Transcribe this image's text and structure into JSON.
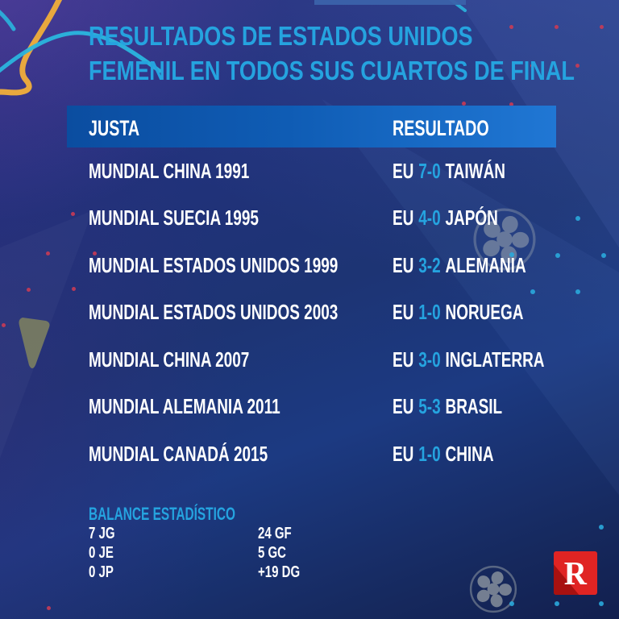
{
  "title": {
    "line1": "RESULTADOS DE ESTADOS UNIDOS",
    "line2": "FEMENIL EN TODOS SUS CUARTOS DE FINAL"
  },
  "table": {
    "header": {
      "justa": "JUSTA",
      "resultado": "RESULTADO"
    },
    "rows": [
      {
        "justa": "MUNDIAL CHINA 1991",
        "team": "EU",
        "score": "7-0",
        "opponent": "TAIWÁN"
      },
      {
        "justa": "MUNDIAL SUECIA 1995",
        "team": "EU",
        "score": "4-0",
        "opponent": "JAPÓN"
      },
      {
        "justa": "MUNDIAL ESTADOS UNIDOS 1999",
        "team": "EU",
        "score": "3-2",
        "opponent": "ALEMANIA"
      },
      {
        "justa": "MUNDIAL ESTADOS UNIDOS 2003",
        "team": "EU",
        "score": "1-0",
        "opponent": "NORUEGA"
      },
      {
        "justa": "MUNDIAL CHINA 2007",
        "team": "EU",
        "score": "3-0",
        "opponent": "INGLATERRA"
      },
      {
        "justa": "MUNDIAL ALEMANIA 2011",
        "team": "EU",
        "score": "5-3",
        "opponent": "BRASIL"
      },
      {
        "justa": "MUNDIAL CANADÁ 2015",
        "team": "EU",
        "score": "1-0",
        "opponent": "CHINA"
      }
    ]
  },
  "balance": {
    "title": "BALANCE ESTADÍSTICO",
    "left": [
      "7 JG",
      "0 JE",
      "0 JP"
    ],
    "right": [
      "24 GF",
      "5 GC",
      "+19 DG"
    ]
  },
  "logo": {
    "letter": "R"
  },
  "colors": {
    "accent_blue": "#25A3DF",
    "header_gradient_left": "#0B4DA0",
    "header_gradient_right": "#2077D4",
    "background_navy": "#1C3470",
    "logo_red": "#E02423",
    "logo_red_dark": "#A81110",
    "dot_red": "#C93B55",
    "dot_cyan": "#2AA8DC",
    "curve_gold": "#E8A83E",
    "curve_teal": "#2AB5DE",
    "ball_gray": "#C2C7BF",
    "pick_olive": "#7D8160"
  },
  "chart_data": {
    "type": "table",
    "title": "RESULTADOS DE ESTADOS UNIDOS FEMENIL EN TODOS SUS CUARTOS DE FINAL",
    "columns": [
      "JUSTA",
      "RESULTADO"
    ],
    "rows": [
      [
        "MUNDIAL CHINA 1991",
        "EU 7-0 TAIWÁN"
      ],
      [
        "MUNDIAL SUECIA 1995",
        "EU 4-0 JAPÓN"
      ],
      [
        "MUNDIAL ESTADOS UNIDOS 1999",
        "EU 3-2 ALEMANIA"
      ],
      [
        "MUNDIAL ESTADOS UNIDOS 2003",
        "EU 1-0 NORUEGA"
      ],
      [
        "MUNDIAL CHINA 2007",
        "EU 3-0 INGLATERRA"
      ],
      [
        "MUNDIAL ALEMANIA 2011",
        "EU 5-3 BRASIL"
      ],
      [
        "MUNDIAL CANADÁ 2015",
        "EU 1-0 CHINA"
      ]
    ],
    "annotations": [
      "BALANCE ESTADÍSTICO",
      "7 JG",
      "0 JE",
      "0 JP",
      "24 GF",
      "5 GC",
      "+19 DG"
    ]
  }
}
